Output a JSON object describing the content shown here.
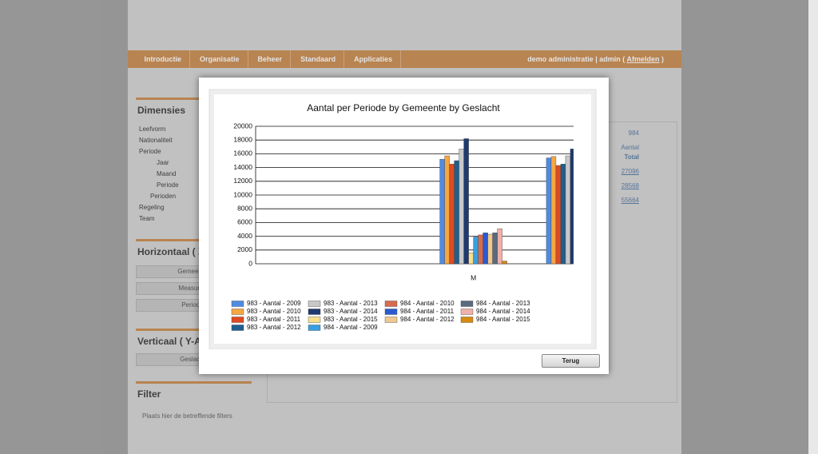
{
  "background": {
    "menu": [
      "Introductie",
      "Organisatie",
      "Beheer",
      "Standaard",
      "Applicaties"
    ],
    "user": "demo administratie | admin (",
    "logout": "Afmelden",
    "user_end": ")",
    "dimensions_title": "Dimensies",
    "tree": [
      "Leefvorm",
      "Nationaliteit",
      "Periode",
      "Jaar",
      "Maand",
      "Periode",
      "Perioden",
      "Regeling",
      "Team"
    ],
    "horizontal_title": "Horizontaal ( X-As )",
    "horizontal_items": [
      "Gemeente",
      "Measures",
      "Periode"
    ],
    "vertical_title": "Verticaal ( Y-As )",
    "vertical_items": [
      "Geslacht"
    ],
    "filter_title": "Filter",
    "filter_hint": "Plaats hier de betreffende filters",
    "table": {
      "header": "984",
      "measure": "Aantal",
      "total": "Total",
      "rows": [
        "27096",
        "28568",
        "55664"
      ]
    }
  },
  "chart_data": {
    "type": "bar",
    "title": "Aantal per Periode by Gemeente by Geslacht",
    "categories": [
      null,
      "M",
      null
    ],
    "ylim": [
      0,
      20000
    ],
    "yticks": [
      0,
      2000,
      4000,
      6000,
      8000,
      10000,
      12000,
      14000,
      16000,
      18000,
      20000
    ],
    "grid": true,
    "series": [
      {
        "name": "983 - Aantal - 2009",
        "color": "#4f8be3",
        "values": [
          null,
          15200,
          15400
        ]
      },
      {
        "name": "983 - Aantal - 2010",
        "color": "#f5a742",
        "values": [
          null,
          15700,
          15600
        ]
      },
      {
        "name": "983 - Aantal - 2011",
        "color": "#e04a20",
        "values": [
          null,
          14500,
          14300
        ]
      },
      {
        "name": "983 - Aantal - 2012",
        "color": "#1f5f8f",
        "values": [
          null,
          15000,
          14500
        ]
      },
      {
        "name": "983 - Aantal - 2013",
        "color": "#c8c8c8",
        "values": [
          null,
          16700,
          15700
        ]
      },
      {
        "name": "983 - Aantal - 2014",
        "color": "#1e3a6e",
        "values": [
          null,
          18200,
          16700
        ]
      },
      {
        "name": "983 - Aantal - 2015",
        "color": "#f8e08a",
        "values": [
          null,
          1600,
          null
        ]
      },
      {
        "name": "984 - Aantal - 2009",
        "color": "#3a9ee0",
        "values": [
          null,
          3900,
          null
        ]
      },
      {
        "name": "984 - Aantal - 2010",
        "color": "#d86a50",
        "values": [
          null,
          4200,
          null
        ]
      },
      {
        "name": "984 - Aantal - 2011",
        "color": "#2a5ad0",
        "values": [
          null,
          4500,
          null
        ]
      },
      {
        "name": "984 - Aantal - 2012",
        "color": "#f0c890",
        "values": [
          null,
          4300,
          null
        ]
      },
      {
        "name": "984 - Aantal - 2013",
        "color": "#5a6a80",
        "values": [
          null,
          4500,
          null
        ]
      },
      {
        "name": "984 - Aantal - 2014",
        "color": "#f0b0a8",
        "values": [
          null,
          5100,
          null
        ]
      },
      {
        "name": "984 - Aantal - 2015",
        "color": "#d88a10",
        "values": [
          null,
          400,
          null
        ]
      }
    ]
  },
  "dialog": {
    "button": "Terug"
  }
}
